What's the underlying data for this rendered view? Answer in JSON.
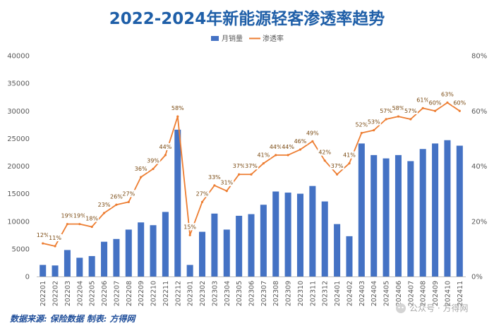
{
  "chart_data": {
    "type": "bar",
    "title": "2022-2024年新能源轻客渗透率趋势",
    "categories": [
      "202201",
      "202202",
      "202203",
      "202204",
      "202205",
      "202206",
      "202207",
      "202208",
      "202209",
      "202210",
      "202211",
      "202212",
      "202301",
      "202302",
      "202303",
      "202304",
      "202305",
      "202306",
      "202307",
      "202308",
      "202309",
      "202310",
      "202311",
      "202312",
      "202401",
      "202402",
      "202403",
      "202404",
      "202405",
      "202406",
      "202407",
      "202408",
      "202409",
      "202410",
      "202411"
    ],
    "series": [
      {
        "name": "月销量",
        "type": "bar",
        "axis": "left",
        "color": "#4472c4",
        "values": [
          2100,
          2000,
          4800,
          3400,
          3700,
          6300,
          6800,
          8500,
          9800,
          9300,
          11700,
          26600,
          2100,
          8100,
          11400,
          8500,
          11000,
          11300,
          13000,
          15400,
          15200,
          15000,
          16400,
          13600,
          9500,
          7300,
          24100,
          22000,
          21400,
          22000,
          20900,
          23100,
          24100,
          24700,
          23700
        ]
      },
      {
        "name": "渗透率",
        "type": "line",
        "axis": "right",
        "color": "#ed7d31",
        "values": [
          12,
          11,
          19,
          19,
          18,
          23,
          26,
          27,
          36,
          39,
          44,
          58,
          15,
          27,
          33,
          31,
          37,
          37,
          41,
          44,
          44,
          46,
          49,
          42,
          37,
          41,
          52,
          53,
          57,
          58,
          57,
          61,
          60,
          63,
          60
        ],
        "labels": [
          "12%",
          "11%",
          "19%",
          "19%",
          "18%",
          "23%",
          "26%",
          "27%",
          "36%",
          "39%",
          "44%",
          "58%",
          "15%",
          "27%",
          "33%",
          "31%",
          "37%",
          "37%",
          "41%",
          "44%",
          "44%",
          "46%",
          "49%",
          "42%",
          "37%",
          "41%",
          "52%",
          "53%",
          "57%",
          "58%",
          "57%",
          "61%",
          "60%",
          "63%",
          "60%"
        ]
      }
    ],
    "ylim": [
      0,
      40000
    ],
    "y2lim": [
      0,
      80
    ],
    "yticks": [
      "0",
      "5000",
      "10000",
      "15000",
      "20000",
      "25000",
      "30000",
      "35000",
      "40000"
    ],
    "y2ticks": [
      "0%",
      "20%",
      "40%",
      "60%",
      "80%"
    ],
    "xlabel": "",
    "ylabel": "",
    "legend": "top-center",
    "grid": false
  },
  "footer": {
    "source": "数据来源: 保险数据 制表: 方得网",
    "watermark": "公众号 · 方得网"
  },
  "colors": {
    "title": "#1f5fa8",
    "bar": "#4472c4",
    "line": "#ed7d31",
    "footer": "#1f4e9a"
  }
}
